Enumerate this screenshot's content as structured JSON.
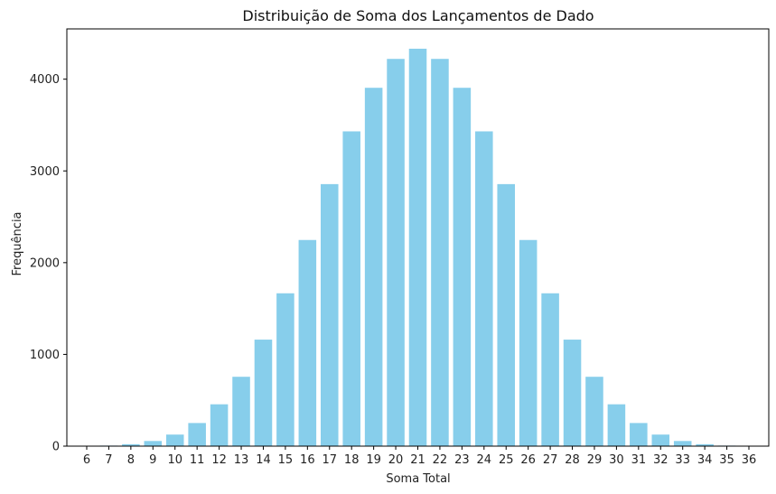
{
  "chart_data": {
    "type": "bar",
    "title": "Distribuição de Soma dos Lançamentos de Dado",
    "xlabel": "Soma Total",
    "ylabel": "Frequência",
    "categories": [
      "6",
      "7",
      "8",
      "9",
      "10",
      "11",
      "12",
      "13",
      "14",
      "15",
      "16",
      "17",
      "18",
      "19",
      "20",
      "21",
      "22",
      "23",
      "24",
      "25",
      "26",
      "27",
      "28",
      "29",
      "30",
      "31",
      "32",
      "33",
      "34",
      "35",
      "36"
    ],
    "values": [
      1,
      6,
      21,
      56,
      126,
      252,
      456,
      756,
      1161,
      1666,
      2247,
      2856,
      3431,
      3906,
      4221,
      4332,
      4221,
      3906,
      3431,
      2856,
      2247,
      1666,
      1161,
      756,
      456,
      252,
      126,
      56,
      21,
      6,
      1
    ],
    "yticks": [
      0,
      1000,
      2000,
      3000,
      4000
    ],
    "ylim": [
      0,
      4548
    ],
    "xlim": [
      5.1,
      36.9
    ],
    "bar_color": "#87CEEB",
    "grid": false
  }
}
